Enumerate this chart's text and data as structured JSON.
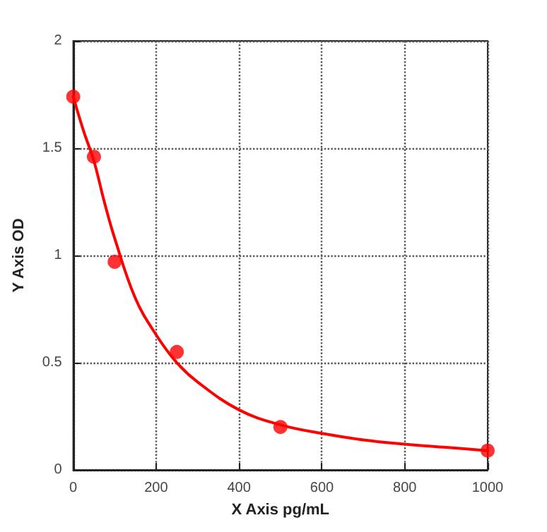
{
  "chart_data": {
    "type": "scatter",
    "xlabel": "X Axis pg/mL",
    "ylabel": "Y Axis OD",
    "xlim": [
      0,
      1000
    ],
    "xticks": [
      0,
      200,
      400,
      600,
      800,
      1000
    ],
    "ylim": [
      0,
      2
    ],
    "yticks": [
      0,
      0.5,
      1,
      1.5,
      2
    ],
    "grid": true,
    "marker": "circle",
    "series": [
      {
        "color": "#ff0000",
        "x": [
          0,
          50,
          100,
          250,
          500,
          1000
        ],
        "values": [
          1.74,
          1.46,
          0.97,
          0.55,
          0.2,
          0.09
        ]
      },
      {
        "type": "line",
        "color": "#ff0000",
        "marker": "none",
        "line_style": "solid",
        "x": [
          0,
          25,
          50,
          75,
          100,
          150,
          200,
          250,
          300,
          400,
          500,
          600,
          700,
          800,
          900,
          1000
        ],
        "values": [
          1.74,
          1.58,
          1.44,
          1.25,
          1.08,
          0.8,
          0.63,
          0.5,
          0.41,
          0.28,
          0.21,
          0.17,
          0.14,
          0.12,
          0.105,
          0.09
        ]
      }
    ]
  }
}
